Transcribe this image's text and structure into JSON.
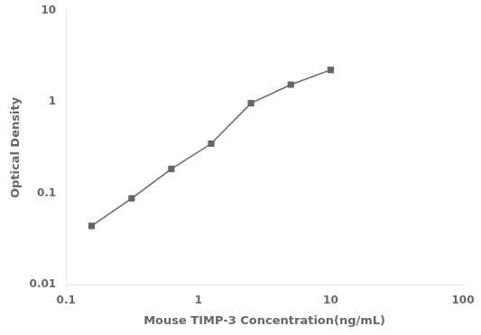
{
  "chart_data": {
    "type": "line",
    "xlabel": "Mouse TIMP-3 Concentration(ng/mL)",
    "ylabel": "Optical Density",
    "x": [
      0.156,
      0.313,
      0.625,
      1.25,
      2.5,
      5.0,
      10.0
    ],
    "values": [
      0.044,
      0.088,
      0.185,
      0.35,
      0.97,
      1.55,
      2.25
    ],
    "log": true,
    "xlim": [
      0.1,
      100
    ],
    "ylim": [
      0.01,
      10
    ],
    "xticks": [
      0.1,
      1,
      10,
      100
    ],
    "yticks": [
      0.01,
      0.1,
      1,
      10
    ],
    "color": "#666666",
    "marker": "square",
    "line_style": "solid",
    "grid": false
  }
}
